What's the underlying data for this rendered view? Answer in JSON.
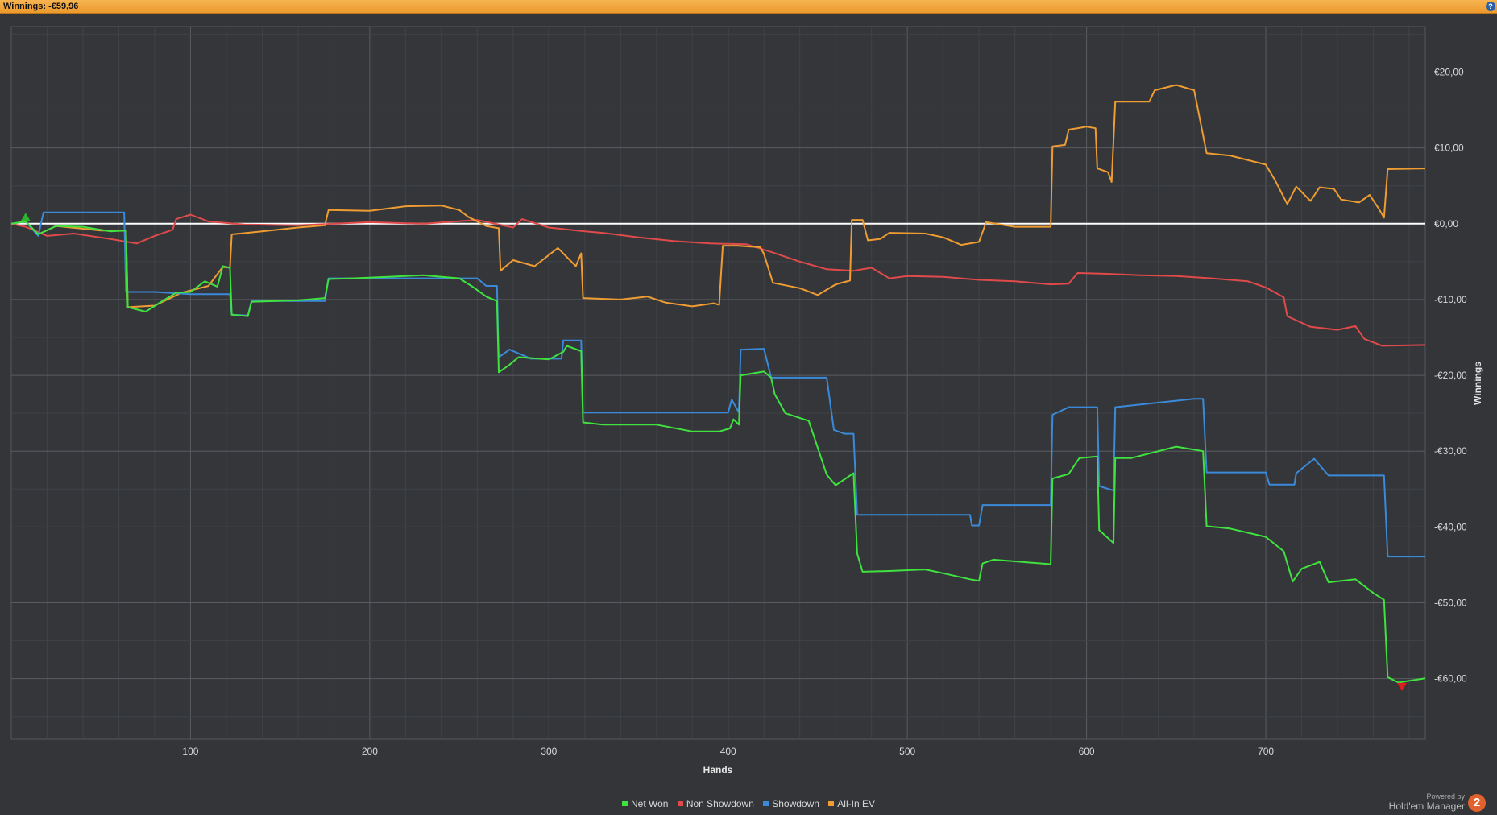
{
  "header": {
    "title": "Winnings: -€59,96"
  },
  "chart_data": {
    "type": "line",
    "title": "",
    "xlabel": "Hands",
    "ylabel": "Winnings",
    "xlim": [
      0,
      789
    ],
    "ylim": [
      -68,
      26
    ],
    "x_ticks": [
      100,
      200,
      300,
      400,
      500,
      600,
      700
    ],
    "y_ticks": [
      20,
      10,
      0,
      -10,
      -20,
      -30,
      -40,
      -50,
      -60
    ],
    "y_tick_labels": [
      "€20,00",
      "€10,00",
      "€0,00",
      "-€10,00",
      "-€20,00",
      "-€30,00",
      "-€40,00",
      "-€50,00",
      "-€60,00"
    ],
    "grid": true,
    "legend_position": "bottom",
    "series": [
      {
        "name": "Net Won",
        "color": "#3fe23f",
        "points": [
          [
            0,
            0
          ],
          [
            8,
            0.3
          ],
          [
            15,
            -1.4
          ],
          [
            25,
            -0.3
          ],
          [
            40,
            -0.4
          ],
          [
            55,
            -1.0
          ],
          [
            64,
            -0.9
          ],
          [
            65,
            -11
          ],
          [
            75,
            -11.6
          ],
          [
            85,
            -10.1
          ],
          [
            92,
            -9.1
          ],
          [
            100,
            -9.0
          ],
          [
            108,
            -7.6
          ],
          [
            115,
            -8.3
          ],
          [
            118,
            -5.6
          ],
          [
            122,
            -5.8
          ],
          [
            123,
            -12
          ],
          [
            132,
            -12.2
          ],
          [
            134,
            -10.3
          ],
          [
            160,
            -10.1
          ],
          [
            175,
            -9.8
          ],
          [
            177,
            -7.3
          ],
          [
            190,
            -7.2
          ],
          [
            210,
            -7.0
          ],
          [
            230,
            -6.8
          ],
          [
            250,
            -7.2
          ],
          [
            258,
            -8.4
          ],
          [
            265,
            -9.6
          ],
          [
            271,
            -10.2
          ],
          [
            272,
            -19.6
          ],
          [
            278,
            -18.6
          ],
          [
            283,
            -17.6
          ],
          [
            300,
            -17.9
          ],
          [
            308,
            -16.9
          ],
          [
            310,
            -16.1
          ],
          [
            318,
            -16.8
          ],
          [
            319,
            -26.2
          ],
          [
            330,
            -26.5
          ],
          [
            360,
            -26.5
          ],
          [
            380,
            -27.4
          ],
          [
            395,
            -27.4
          ],
          [
            401,
            -27.0
          ],
          [
            403,
            -25.8
          ],
          [
            406,
            -26.5
          ],
          [
            407,
            -20.0
          ],
          [
            420,
            -19.5
          ],
          [
            424,
            -20.3
          ],
          [
            426,
            -22.5
          ],
          [
            432,
            -25.0
          ],
          [
            445,
            -26.0
          ],
          [
            455,
            -33.1
          ],
          [
            460,
            -34.5
          ],
          [
            470,
            -32.9
          ],
          [
            472,
            -43.5
          ],
          [
            475,
            -45.9
          ],
          [
            490,
            -45.8
          ],
          [
            510,
            -45.6
          ],
          [
            520,
            -46.1
          ],
          [
            535,
            -46.9
          ],
          [
            540,
            -47.1
          ],
          [
            542,
            -44.8
          ],
          [
            548,
            -44.3
          ],
          [
            580,
            -44.9
          ],
          [
            581,
            -33.6
          ],
          [
            590,
            -33.0
          ],
          [
            596,
            -30.9
          ],
          [
            606,
            -30.7
          ],
          [
            607,
            -40.4
          ],
          [
            615,
            -42.1
          ],
          [
            616,
            -30.9
          ],
          [
            625,
            -30.9
          ],
          [
            650,
            -29.4
          ],
          [
            665,
            -30.0
          ],
          [
            667,
            -39.9
          ],
          [
            680,
            -40.2
          ],
          [
            700,
            -41.3
          ],
          [
            710,
            -43.2
          ],
          [
            715,
            -47.2
          ],
          [
            720,
            -45.5
          ],
          [
            730,
            -44.6
          ],
          [
            735,
            -47.3
          ],
          [
            750,
            -46.9
          ],
          [
            760,
            -48.7
          ],
          [
            766,
            -49.6
          ],
          [
            768,
            -59.8
          ],
          [
            774,
            -60.5
          ],
          [
            789,
            -59.96
          ]
        ]
      },
      {
        "name": "Non Showdown",
        "color": "#e04a4a",
        "points": [
          [
            0,
            0
          ],
          [
            8,
            -0.4
          ],
          [
            20,
            -1.6
          ],
          [
            35,
            -1.3
          ],
          [
            55,
            -2.0
          ],
          [
            70,
            -2.6
          ],
          [
            80,
            -1.6
          ],
          [
            90,
            -0.8
          ],
          [
            92,
            0.6
          ],
          [
            100,
            1.2
          ],
          [
            110,
            0.3
          ],
          [
            130,
            -0.1
          ],
          [
            160,
            -0.2
          ],
          [
            180,
            0.0
          ],
          [
            200,
            0.2
          ],
          [
            230,
            0.0
          ],
          [
            260,
            0.5
          ],
          [
            280,
            -0.5
          ],
          [
            285,
            0.6
          ],
          [
            300,
            -0.5
          ],
          [
            320,
            -1.0
          ],
          [
            330,
            -1.2
          ],
          [
            350,
            -1.8
          ],
          [
            370,
            -2.3
          ],
          [
            390,
            -2.6
          ],
          [
            410,
            -2.7
          ],
          [
            425,
            -3.8
          ],
          [
            440,
            -5.0
          ],
          [
            455,
            -6.0
          ],
          [
            470,
            -6.2
          ],
          [
            480,
            -5.8
          ],
          [
            490,
            -7.2
          ],
          [
            500,
            -6.9
          ],
          [
            520,
            -7.0
          ],
          [
            540,
            -7.4
          ],
          [
            560,
            -7.6
          ],
          [
            580,
            -8.0
          ],
          [
            590,
            -7.9
          ],
          [
            595,
            -6.5
          ],
          [
            610,
            -6.6
          ],
          [
            630,
            -6.8
          ],
          [
            650,
            -6.9
          ],
          [
            670,
            -7.2
          ],
          [
            690,
            -7.6
          ],
          [
            700,
            -8.4
          ],
          [
            710,
            -9.7
          ],
          [
            712,
            -12.2
          ],
          [
            725,
            -13.6
          ],
          [
            740,
            -14.0
          ],
          [
            750,
            -13.5
          ],
          [
            755,
            -15.2
          ],
          [
            765,
            -16.1
          ],
          [
            789,
            -16.0
          ]
        ]
      },
      {
        "name": "Showdown",
        "color": "#3b8ad9",
        "points": [
          [
            0,
            0
          ],
          [
            8,
            0.3
          ],
          [
            15,
            -1.6
          ],
          [
            18,
            1.5
          ],
          [
            63,
            1.5
          ],
          [
            64,
            -9.0
          ],
          [
            80,
            -9.0
          ],
          [
            100,
            -9.3
          ],
          [
            122,
            -9.3
          ],
          [
            123,
            -12
          ],
          [
            132,
            -12.1
          ],
          [
            134,
            -10.2
          ],
          [
            175,
            -10.2
          ],
          [
            177,
            -7.2
          ],
          [
            260,
            -7.2
          ],
          [
            265,
            -8.2
          ],
          [
            271,
            -8.2
          ],
          [
            272,
            -17.6
          ],
          [
            278,
            -16.6
          ],
          [
            290,
            -17.8
          ],
          [
            307,
            -17.8
          ],
          [
            308,
            -15.4
          ],
          [
            318,
            -15.4
          ],
          [
            319,
            -24.9
          ],
          [
            400,
            -24.9
          ],
          [
            402,
            -23.2
          ],
          [
            406,
            -24.9
          ],
          [
            407,
            -16.6
          ],
          [
            420,
            -16.5
          ],
          [
            424,
            -20.3
          ],
          [
            455,
            -20.3
          ],
          [
            459,
            -27.2
          ],
          [
            465,
            -27.7
          ],
          [
            470,
            -27.7
          ],
          [
            472,
            -38.4
          ],
          [
            535,
            -38.4
          ],
          [
            536,
            -39.8
          ],
          [
            540,
            -39.8
          ],
          [
            542,
            -37.1
          ],
          [
            580,
            -37.1
          ],
          [
            581,
            -25.2
          ],
          [
            590,
            -24.2
          ],
          [
            606,
            -24.2
          ],
          [
            607,
            -34.6
          ],
          [
            615,
            -35.2
          ],
          [
            616,
            -24.2
          ],
          [
            660,
            -23.1
          ],
          [
            665,
            -23.1
          ],
          [
            667,
            -32.8
          ],
          [
            700,
            -32.8
          ],
          [
            702,
            -34.4
          ],
          [
            716,
            -34.4
          ],
          [
            717,
            -32.9
          ],
          [
            727,
            -31.0
          ],
          [
            735,
            -33.2
          ],
          [
            766,
            -33.2
          ],
          [
            768,
            -43.9
          ],
          [
            789,
            -43.9
          ]
        ]
      },
      {
        "name": "All-In EV",
        "color": "#ef9c32",
        "points": [
          [
            0,
            0
          ],
          [
            8,
            0.3
          ],
          [
            15,
            -1.4
          ],
          [
            25,
            -0.3
          ],
          [
            50,
            -0.9
          ],
          [
            64,
            -0.9
          ],
          [
            65,
            -11
          ],
          [
            80,
            -10.8
          ],
          [
            95,
            -9.1
          ],
          [
            110,
            -8.2
          ],
          [
            118,
            -5.7
          ],
          [
            122,
            -5.8
          ],
          [
            123,
            -1.4
          ],
          [
            140,
            -1.0
          ],
          [
            160,
            -0.5
          ],
          [
            175,
            -0.2
          ],
          [
            177,
            1.8
          ],
          [
            200,
            1.7
          ],
          [
            220,
            2.3
          ],
          [
            240,
            2.4
          ],
          [
            250,
            1.8
          ],
          [
            255,
            0.9
          ],
          [
            265,
            -0.3
          ],
          [
            272,
            -0.6
          ],
          [
            273,
            -6.2
          ],
          [
            280,
            -4.8
          ],
          [
            292,
            -5.6
          ],
          [
            305,
            -3.2
          ],
          [
            315,
            -5.6
          ],
          [
            318,
            -3.9
          ],
          [
            319,
            -9.8
          ],
          [
            340,
            -10.0
          ],
          [
            355,
            -9.6
          ],
          [
            365,
            -10.4
          ],
          [
            380,
            -10.9
          ],
          [
            392,
            -10.5
          ],
          [
            395,
            -10.7
          ],
          [
            397,
            -2.9
          ],
          [
            405,
            -2.9
          ],
          [
            418,
            -3.1
          ],
          [
            420,
            -4.0
          ],
          [
            425,
            -7.8
          ],
          [
            440,
            -8.5
          ],
          [
            450,
            -9.4
          ],
          [
            460,
            -8.0
          ],
          [
            468,
            -7.5
          ],
          [
            469,
            0.5
          ],
          [
            475,
            0.5
          ],
          [
            478,
            -2.2
          ],
          [
            485,
            -2.0
          ],
          [
            490,
            -1.2
          ],
          [
            510,
            -1.3
          ],
          [
            520,
            -1.8
          ],
          [
            530,
            -2.8
          ],
          [
            540,
            -2.4
          ],
          [
            544,
            0.2
          ],
          [
            560,
            -0.4
          ],
          [
            580,
            -0.4
          ],
          [
            581,
            10.2
          ],
          [
            588,
            10.4
          ],
          [
            590,
            12.4
          ],
          [
            600,
            12.8
          ],
          [
            605,
            12.6
          ],
          [
            606,
            7.3
          ],
          [
            612,
            6.8
          ],
          [
            614,
            5.5
          ],
          [
            616,
            16.1
          ],
          [
            635,
            16.1
          ],
          [
            638,
            17.6
          ],
          [
            650,
            18.3
          ],
          [
            660,
            17.6
          ],
          [
            667,
            9.3
          ],
          [
            680,
            9.0
          ],
          [
            700,
            7.8
          ],
          [
            705,
            5.8
          ],
          [
            712,
            2.6
          ],
          [
            717,
            4.9
          ],
          [
            725,
            3.0
          ],
          [
            730,
            4.8
          ],
          [
            738,
            4.6
          ],
          [
            742,
            3.2
          ],
          [
            752,
            2.8
          ],
          [
            758,
            3.8
          ],
          [
            763,
            2.0
          ],
          [
            766,
            0.8
          ],
          [
            768,
            7.2
          ],
          [
            789,
            7.3
          ]
        ]
      }
    ],
    "markers": [
      {
        "type": "peak",
        "shape": "triangle-up",
        "color": "#2bb52b",
        "x": 8,
        "y": 0.8
      },
      {
        "type": "low",
        "shape": "triangle-down",
        "color": "#e21b1b",
        "x": 776,
        "y": -61
      }
    ]
  },
  "legend": {
    "items": [
      {
        "label": "Net Won",
        "color": "#3fe23f"
      },
      {
        "label": "Non Showdown",
        "color": "#e04a4a"
      },
      {
        "label": "Showdown",
        "color": "#3b8ad9"
      },
      {
        "label": "All-In EV",
        "color": "#ef9c32"
      }
    ]
  },
  "branding": {
    "powered": "Powered by",
    "name": "Hold'em Manager",
    "logo": "2"
  }
}
